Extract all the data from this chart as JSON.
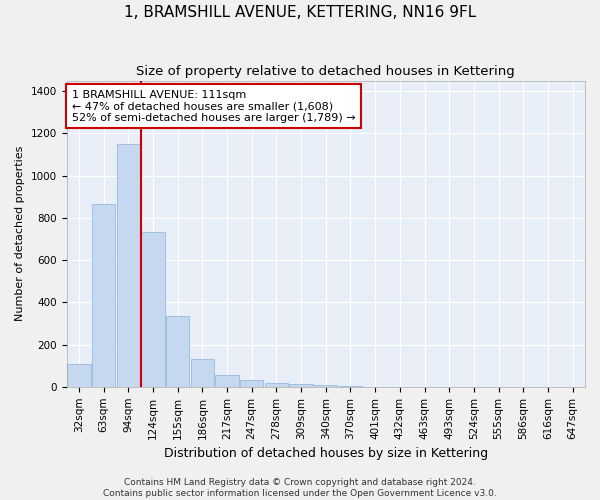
{
  "title": "1, BRAMSHILL AVENUE, KETTERING, NN16 9FL",
  "subtitle": "Size of property relative to detached houses in Kettering",
  "xlabel": "Distribution of detached houses by size in Kettering",
  "ylabel": "Number of detached properties",
  "categories": [
    "32sqm",
    "63sqm",
    "94sqm",
    "124sqm",
    "155sqm",
    "186sqm",
    "217sqm",
    "247sqm",
    "278sqm",
    "309sqm",
    "340sqm",
    "370sqm",
    "401sqm",
    "432sqm",
    "463sqm",
    "493sqm",
    "524sqm",
    "555sqm",
    "586sqm",
    "616sqm",
    "647sqm"
  ],
  "values": [
    110,
    865,
    1150,
    735,
    335,
    130,
    55,
    30,
    20,
    15,
    10,
    5,
    0,
    0,
    0,
    0,
    0,
    0,
    0,
    0,
    0
  ],
  "bar_color": "#c5d8ef",
  "bar_edge_color": "#8ab4d8",
  "vline_color": "#cc0000",
  "annotation_text": "1 BRAMSHILL AVENUE: 111sqm\n← 47% of detached houses are smaller (1,608)\n52% of semi-detached houses are larger (1,789) →",
  "annotation_box_color": "#ffffff",
  "annotation_box_edge": "#cc0000",
  "ylim": [
    0,
    1450
  ],
  "yticks": [
    0,
    200,
    400,
    600,
    800,
    1000,
    1200,
    1400
  ],
  "background_color": "#e8eef8",
  "grid_color": "#ffffff",
  "footer": "Contains HM Land Registry data © Crown copyright and database right 2024.\nContains public sector information licensed under the Open Government Licence v3.0.",
  "title_fontsize": 11,
  "subtitle_fontsize": 9.5,
  "xlabel_fontsize": 9,
  "ylabel_fontsize": 8,
  "tick_fontsize": 7.5,
  "annotation_fontsize": 8,
  "footer_fontsize": 6.5,
  "vline_x_idx": 2.5
}
